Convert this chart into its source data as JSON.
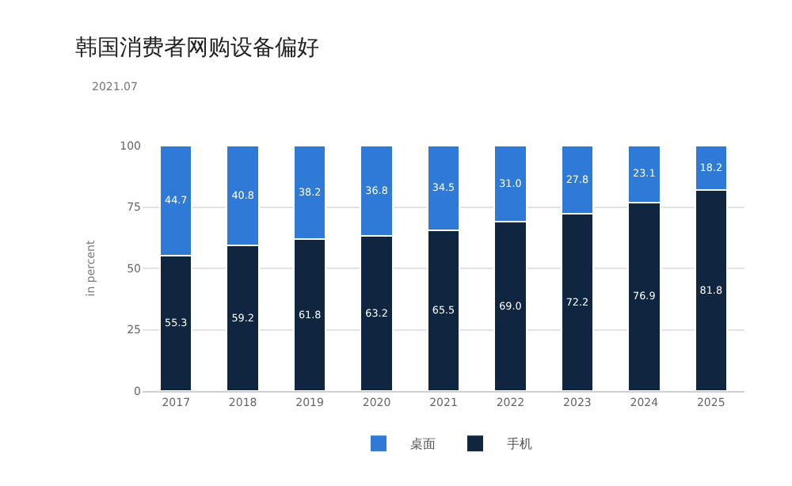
{
  "chart_data": {
    "type": "bar",
    "title": "韩国消费者网购设备偏好",
    "subtitle": "2021.07",
    "ylabel": "in percent",
    "categories": [
      "2017",
      "2018",
      "2019",
      "2020",
      "2021",
      "2022",
      "2023",
      "2024",
      "2025"
    ],
    "stacked": true,
    "ylim": [
      0,
      100
    ],
    "yticks": [
      0,
      25,
      50,
      75,
      100
    ],
    "grid": "y",
    "legend": "bottom",
    "series": [
      {
        "name": "手机",
        "color": "#0f2540",
        "values": [
          55.3,
          59.2,
          61.8,
          63.2,
          65.5,
          69.0,
          72.2,
          76.9,
          81.8
        ],
        "value_labels": [
          "55.3",
          "59.2",
          "61.8",
          "63.2",
          "65.5",
          "69.0",
          "72.2",
          "76.9",
          "81.8"
        ]
      },
      {
        "name": "桌面",
        "color": "#2f7ad6",
        "values": [
          44.7,
          40.8,
          38.2,
          36.8,
          34.5,
          31.0,
          27.8,
          23.1,
          18.2
        ],
        "value_labels": [
          "44.7",
          "40.8",
          "38.2",
          "36.8",
          "34.5",
          "31.0",
          "27.8",
          "23.1",
          "18.2"
        ]
      }
    ]
  }
}
